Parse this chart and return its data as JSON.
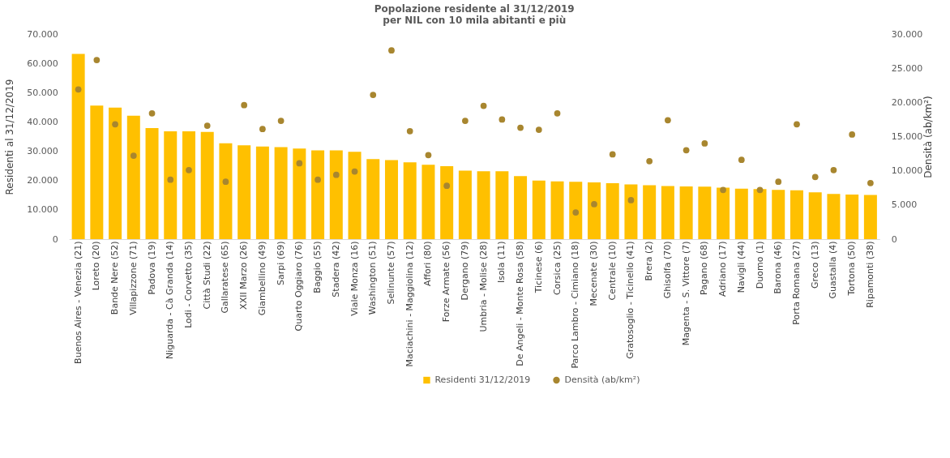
{
  "chart_data": {
    "type": "bar",
    "title": [
      "Popolazione residente al 31/12/2019",
      "per NIL con 10 mila abitanti e più"
    ],
    "ylabel": "Residenti al 31/12/2019",
    "y2label": "Densità (ab/km²)",
    "categories": [
      "Buenos Aires - Venezia (21)",
      "Loreto (20)",
      "Bande Nere (52)",
      "Villapizzone (71)",
      "Padova (19)",
      "Niguarda - Cà Granda (14)",
      "Lodi - Corvetto (35)",
      "Città Studi (22)",
      "Gallaratese (65)",
      "XXII Marzo (26)",
      "Giambellino (49)",
      "Sarpi (69)",
      "Quarto Oggiaro (76)",
      "Baggio (55)",
      "Stadera (42)",
      "Viale Monza (16)",
      "Washington (51)",
      "Selinunte (57)",
      "Maciachini - Maggiolina (12)",
      "Affori (80)",
      "Forze Armate (56)",
      "Dergano (79)",
      "Umbria - Molise (28)",
      "Isola (11)",
      "De Angeli - Monte Rosa (58)",
      "Ticinese (6)",
      "Corsica (25)",
      "Parco Lambro - Cimiano (18)",
      "Mecenate (30)",
      "Centrale (10)",
      "Gratosoglio - Ticinello (41)",
      "Brera (2)",
      "Ghisolfa (70)",
      "Magenta - S. Vittore (7)",
      "Pagano (68)",
      "Adriano (17)",
      "Navigli (44)",
      "Duomo (1)",
      "Barona (46)",
      "Porta Romana (27)",
      "Greco (13)",
      "Guastalla (4)",
      "Tortona (50)",
      "Ripamonti (38)"
    ],
    "series": [
      {
        "name": "Residenti 31/12/2019",
        "color": "#ffc000",
        "values": [
          63200,
          45600,
          44900,
          42100,
          37900,
          36800,
          36800,
          36600,
          32700,
          32000,
          31600,
          31400,
          30900,
          30300,
          30300,
          29800,
          27300,
          27000,
          26200,
          25400,
          24900,
          23400,
          23200,
          23200,
          21500,
          20000,
          19700,
          19600,
          19400,
          19100,
          18700,
          18400,
          18100,
          18000,
          17900,
          17600,
          17200,
          17100,
          16800,
          16700,
          16000,
          15400,
          15200,
          15100
        ]
      },
      {
        "name": "Densità (ab/km²)",
        "type": "scatter",
        "axis": "y2",
        "color": "#a8862f",
        "values": [
          21900,
          26200,
          16800,
          12200,
          18400,
          8700,
          10100,
          16600,
          8400,
          19600,
          16100,
          17300,
          11100,
          8700,
          9400,
          9900,
          21100,
          27600,
          15800,
          12300,
          7800,
          17300,
          19500,
          17500,
          16300,
          16000,
          18400,
          3900,
          5100,
          12400,
          5700,
          11400,
          17400,
          13000,
          14000,
          7200,
          11600,
          7200,
          8400,
          16800,
          9100,
          10100,
          15300,
          8200
        ]
      }
    ],
    "ylim": [
      0,
      70000
    ],
    "yticks": [
      0,
      {
        "value": 10000,
        "label": "10.000"
      },
      {
        "value": 20000,
        "label": "20.000"
      },
      {
        "value": 30000,
        "label": "30.000"
      },
      {
        "value": 40000,
        "label": "40.000"
      },
      {
        "value": 50000,
        "label": "50.000"
      },
      {
        "value": 60000,
        "label": "60.000"
      },
      {
        "value": 70000,
        "label": "70.000"
      }
    ],
    "y2lim": [
      0,
      30000
    ],
    "y2ticks": [
      0,
      {
        "value": 5000,
        "label": "5.000"
      },
      {
        "value": 10000,
        "label": "10.000"
      },
      {
        "value": 15000,
        "label": "15.000"
      },
      {
        "value": 20000,
        "label": "20.000"
      },
      {
        "value": 25000,
        "label": "25.000"
      },
      {
        "value": 30000,
        "label": "30.000"
      }
    ],
    "marker": "circle",
    "grid": false,
    "legend": "bottom"
  }
}
